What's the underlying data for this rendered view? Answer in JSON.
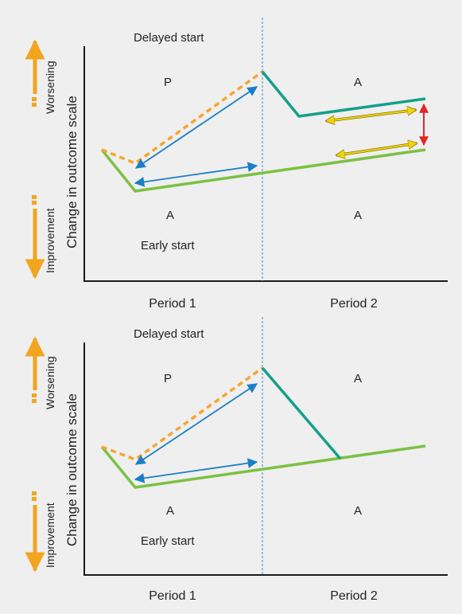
{
  "colors": {
    "background": "#efefef",
    "axis": "#1a1a1a",
    "early_start_line": "#7cc142",
    "delayed_active_line": "#14a08a",
    "placebo_line": "#f7a531",
    "comparison_arrow": "#1b7fc6",
    "difference_arrow": "#e4262a",
    "yellow_arrow": "#f2d20a",
    "side_arrow": "#f2a51f",
    "divider": "#3a8fd0"
  },
  "icons": {
    "side_up": "double-headed-vertical-arrow",
    "comparison": "double-headed-arrow"
  },
  "panels": [
    {
      "delayed_label": "Delayed start",
      "early_label": "Early start",
      "p1_upper": "P",
      "p1_lower": "A",
      "p2_upper": "A",
      "p2_lower": "A",
      "y_axis_label": "Change in outcome scale",
      "worsening": "Worsening",
      "improvement": "Improvement",
      "period1": "Period 1",
      "period2": "Period 2"
    },
    {
      "delayed_label": "Delayed start",
      "early_label": "Early start",
      "p1_upper": "P",
      "p1_lower": "A",
      "p2_upper": "A",
      "p2_lower": "A",
      "y_axis_label": "Change in outcome scale",
      "worsening": "Worsening",
      "improvement": "Improvement",
      "period1": "Period 1",
      "period2": "Period 2"
    }
  ]
}
